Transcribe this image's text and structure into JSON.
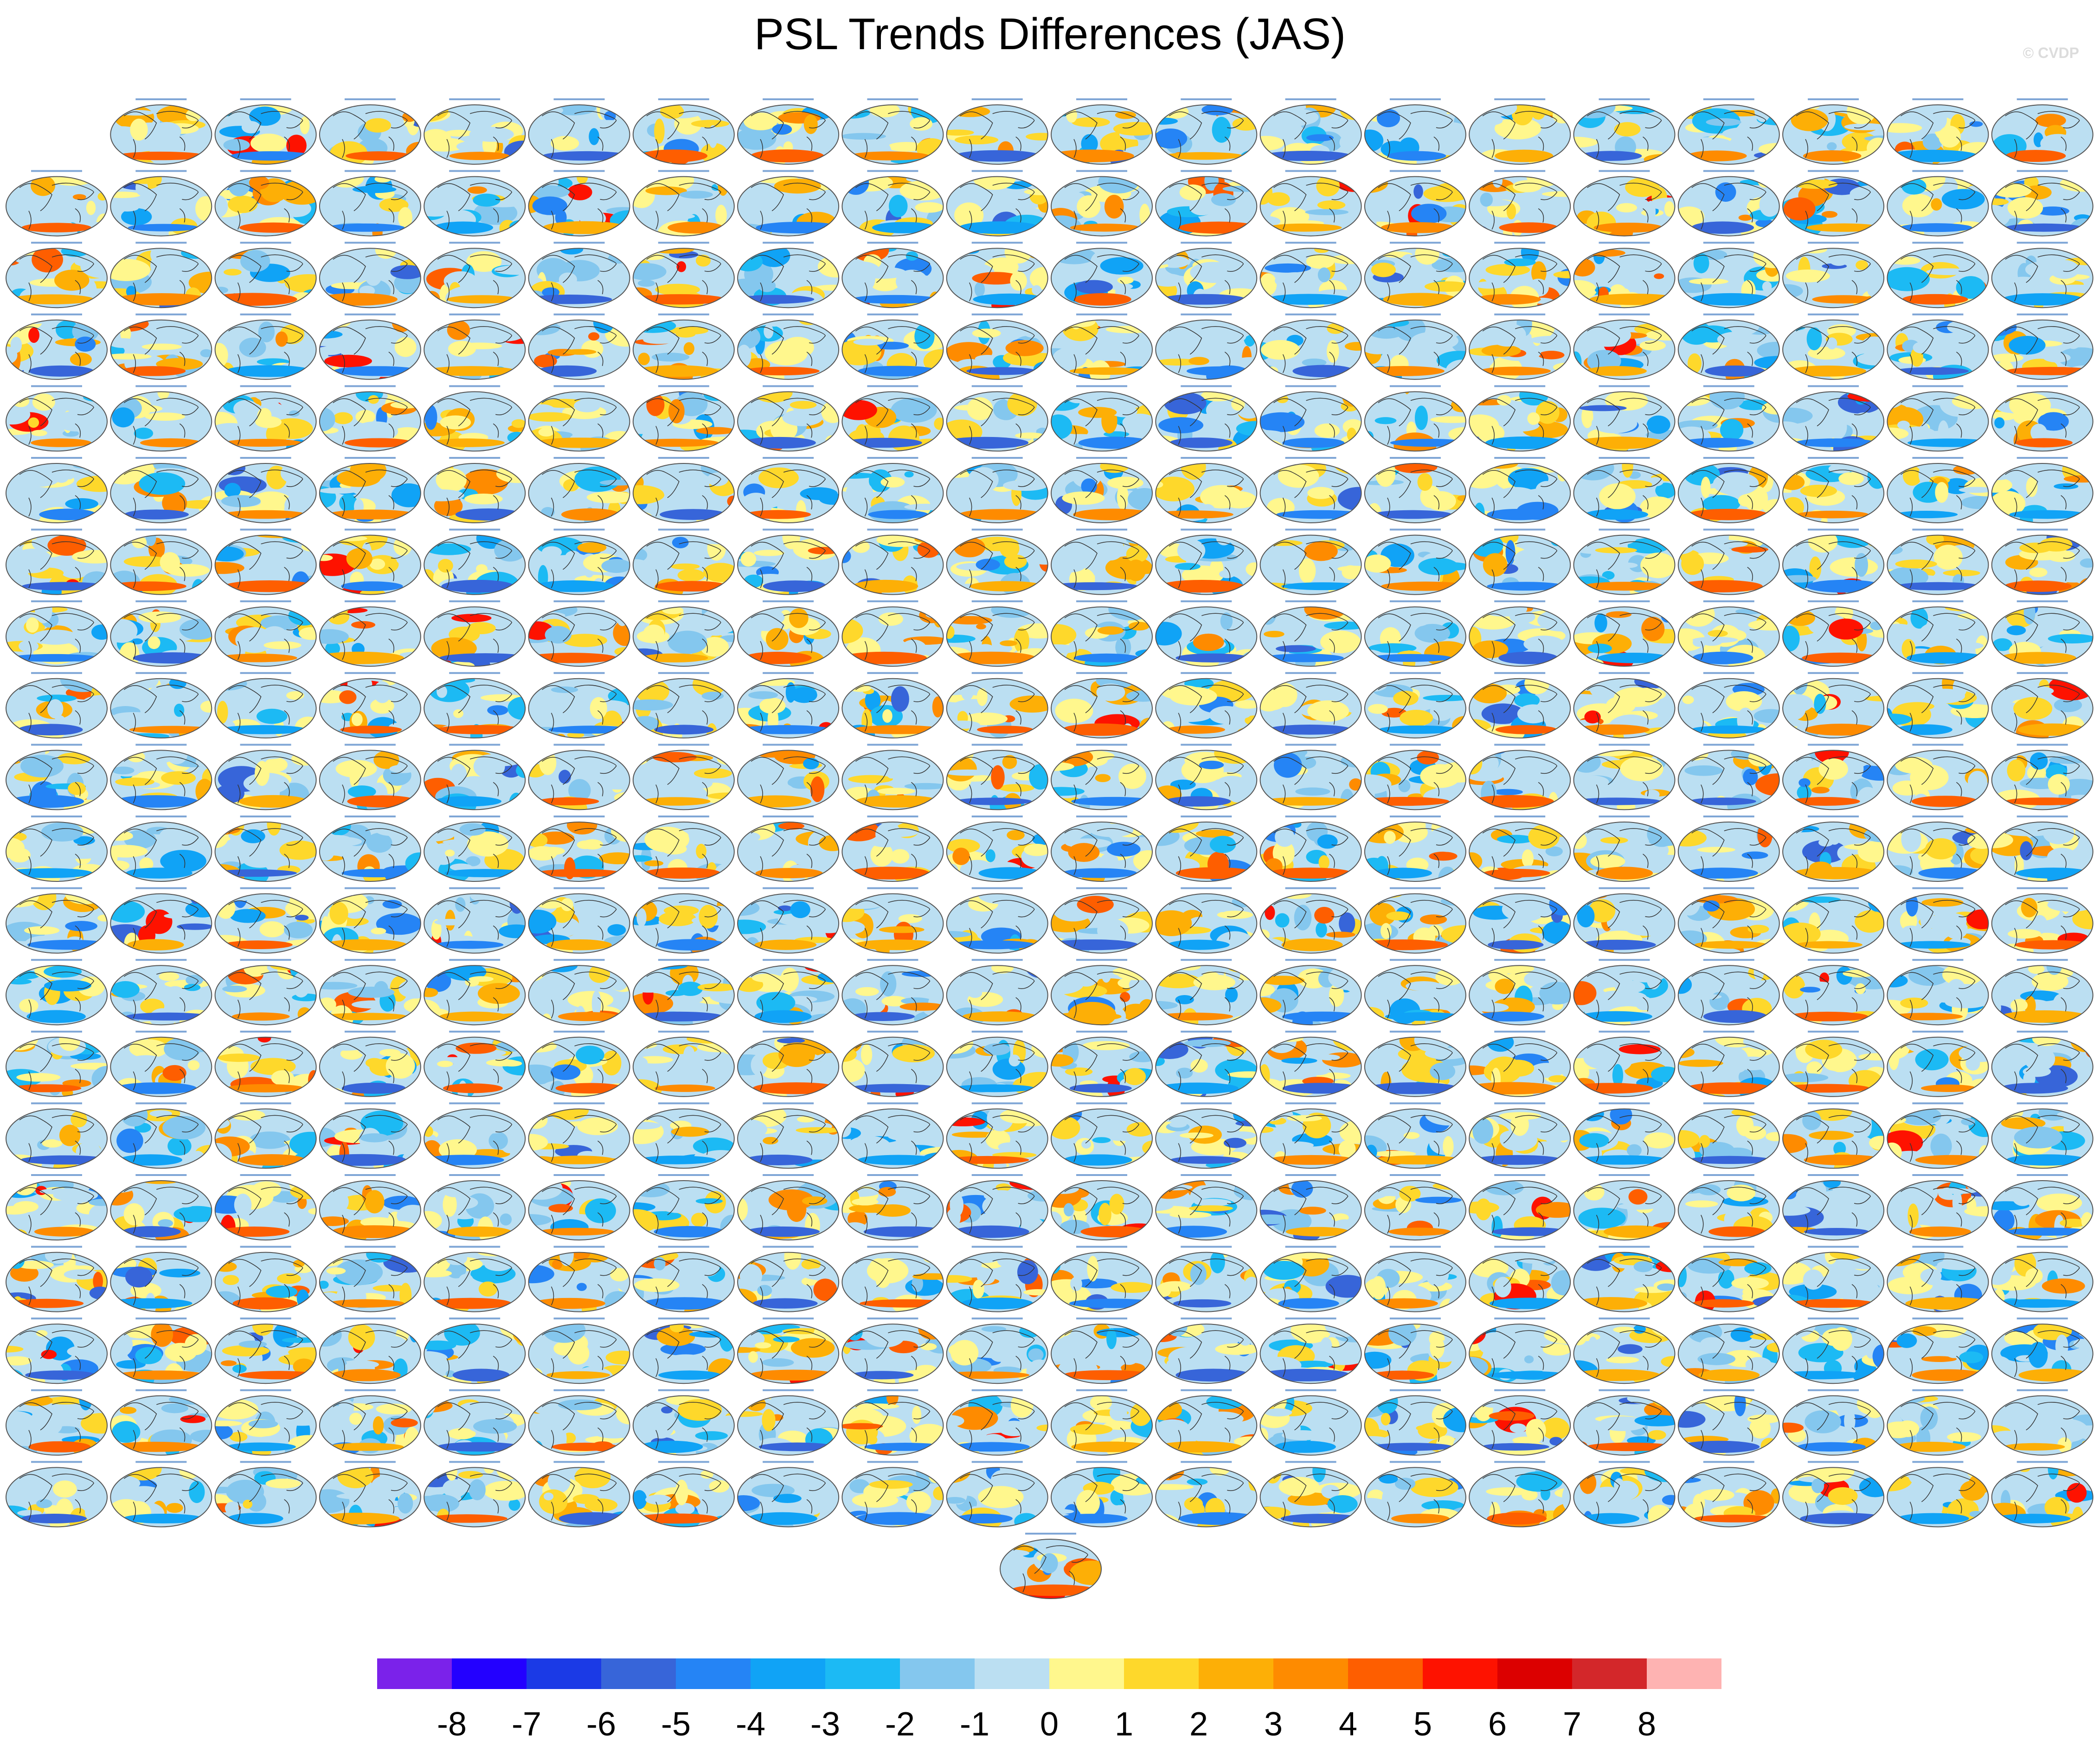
{
  "title": "PSL Trends Differences (JAS)",
  "credit": "© CVDP",
  "chart_data": {
    "type": "heatmap",
    "title": "PSL Trends Differences (JAS)",
    "panel_count": 381,
    "grid": {
      "rows": 20,
      "columns": 20,
      "last_row_panels": 1
    },
    "panel_titles": [],
    "colorbar": {
      "tick_labels": [
        "-8",
        "-7",
        "-6",
        "-5",
        "-4",
        "-3",
        "-2",
        "-1",
        "0",
        "1",
        "2",
        "3",
        "4",
        "5",
        "6",
        "7",
        "8"
      ],
      "colors": [
        "#7b22ea",
        "#2300ff",
        "#1b3ae6",
        "#3765d9",
        "#2584f5",
        "#10a3f6",
        "#1cbaf4",
        "#84c7ee",
        "#bbdff2",
        "#fff78d",
        "#fed82b",
        "#fdaf06",
        "#fe8b00",
        "#fe5e00",
        "#fe1200",
        "#dc0000",
        "#d3272a",
        "#feb3b2"
      ]
    }
  }
}
